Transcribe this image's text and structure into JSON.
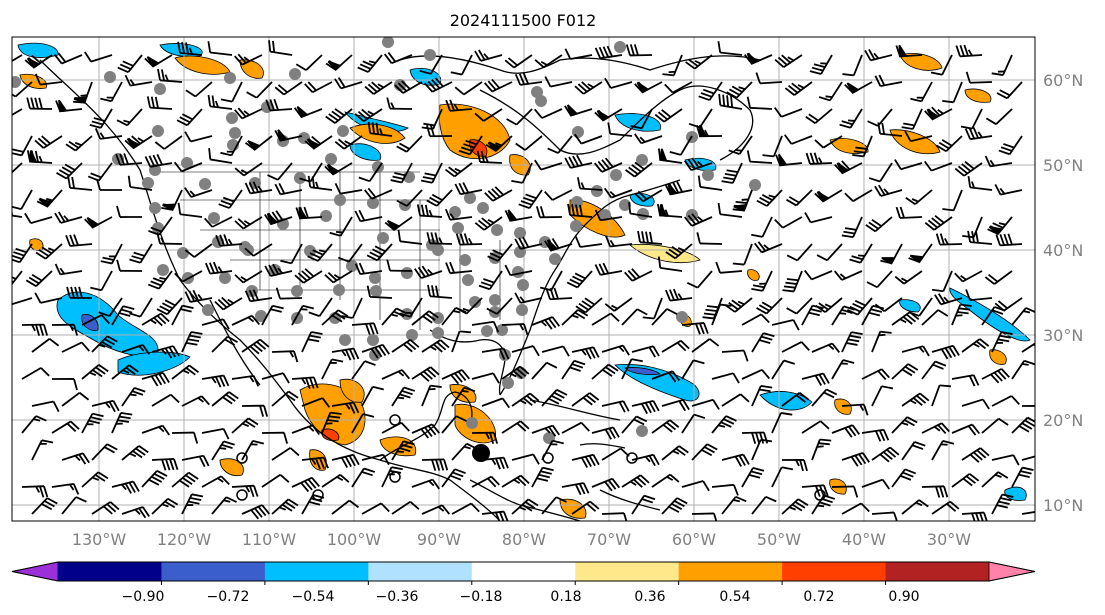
{
  "title": "2024111500 F012",
  "lat_labels": [
    {
      "value": 60,
      "text": "60°N"
    },
    {
      "value": 50,
      "text": "50°N"
    },
    {
      "value": 40,
      "text": "40°N"
    },
    {
      "value": 30,
      "text": "30°N"
    },
    {
      "value": 20,
      "text": "20°N"
    },
    {
      "value": 10,
      "text": "10°N"
    }
  ],
  "lon_labels": [
    {
      "value": -130,
      "text": "130°W"
    },
    {
      "value": -120,
      "text": "120°W"
    },
    {
      "value": -110,
      "text": "110°W"
    },
    {
      "value": -100,
      "text": "100°W"
    },
    {
      "value": -90,
      "text": "90°W"
    },
    {
      "value": -80,
      "text": "80°W"
    },
    {
      "value": -70,
      "text": "70°W"
    },
    {
      "value": -60,
      "text": "60°W"
    },
    {
      "value": -50,
      "text": "50°W"
    },
    {
      "value": -40,
      "text": "40°W"
    },
    {
      "value": -30,
      "text": "30°W"
    }
  ],
  "colorbar": {
    "colors": [
      "#9b30d9",
      "#00008b",
      "#3a5fcd",
      "#00bfff",
      "#b0e2ff",
      "#ffffff",
      "#ffe88a",
      "#ff9f00",
      "#ff3f00",
      "#b22222",
      "#ff82ab"
    ],
    "ticks": [
      "−0.90",
      "−0.72",
      "−0.54",
      "−0.36",
      "−0.18",
      "0.18",
      "0.36",
      "0.54",
      "0.72",
      "0.90"
    ]
  },
  "icons": {
    "wind_barbs": "wind-barb-icon",
    "station": "station-marker-icon",
    "open_station": "open-station-marker-icon"
  }
}
